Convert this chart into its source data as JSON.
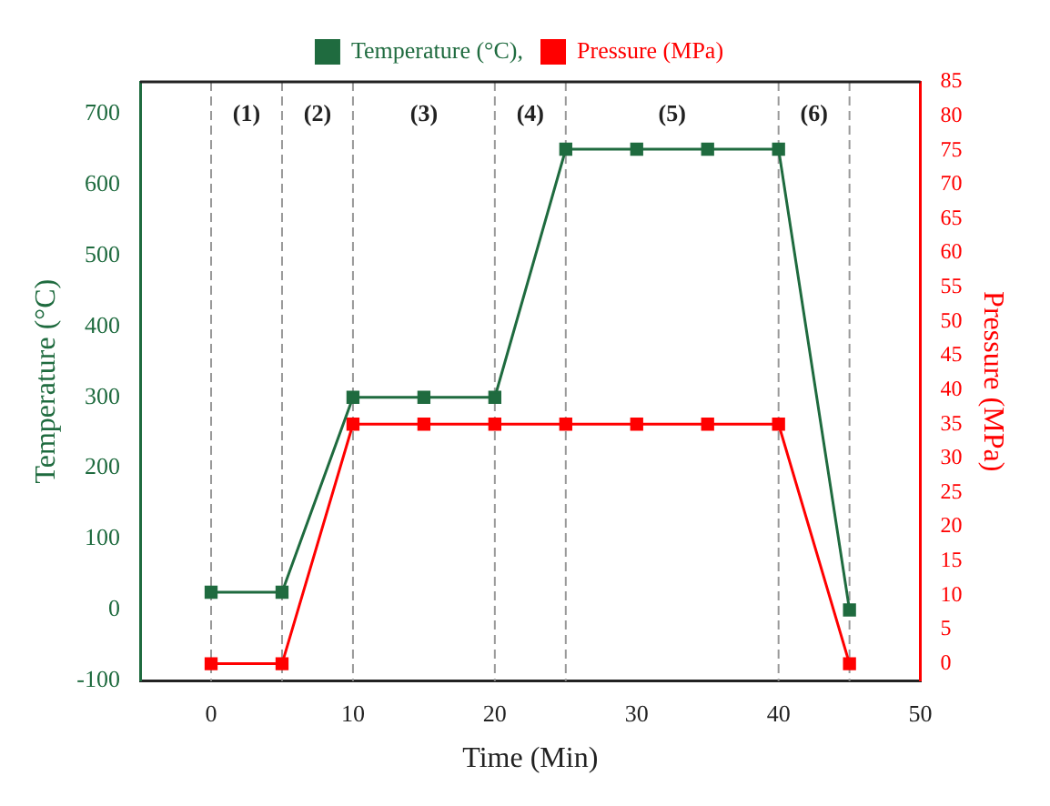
{
  "chart_data": {
    "type": "line",
    "xlabel": "Time (Min)",
    "ylabel": "Temperature (°C)",
    "y2label": "Pressure (MPa)",
    "x": [
      0,
      5,
      10,
      15,
      20,
      25,
      30,
      35,
      40,
      45
    ],
    "series": [
      {
        "name": "Temperature (°C),",
        "color": "#1f6b3f",
        "values": [
          25,
          25,
          300,
          300,
          300,
          650,
          650,
          650,
          650,
          0
        ]
      },
      {
        "name": "Pressure (MPa)",
        "color": "#ff0000",
        "axis": "y2",
        "values": [
          0,
          0,
          35,
          35,
          35,
          35,
          35,
          35,
          35,
          0
        ]
      }
    ],
    "xlim": [
      -5,
      50
    ],
    "xticks": [
      0,
      10,
      20,
      30,
      40,
      50
    ],
    "ylim": [
      -100,
      745
    ],
    "yticks": [
      -100,
      0,
      100,
      200,
      300,
      400,
      500,
      600,
      700
    ],
    "y2lim": [
      -2.5,
      85
    ],
    "y2ticks": [
      0,
      5,
      10,
      15,
      20,
      25,
      30,
      35,
      40,
      45,
      50,
      55,
      60,
      65,
      70,
      75,
      80,
      85
    ],
    "ref_lines": [
      {
        "axis": "x",
        "value": 0,
        "color": "#999999",
        "line_style": "dashed"
      },
      {
        "axis": "x",
        "value": 5,
        "color": "#999999",
        "line_style": "dashed"
      },
      {
        "axis": "x",
        "value": 10,
        "color": "#999999",
        "line_style": "dashed"
      },
      {
        "axis": "x",
        "value": 20,
        "color": "#999999",
        "line_style": "dashed"
      },
      {
        "axis": "x",
        "value": 25,
        "color": "#999999",
        "line_style": "dashed"
      },
      {
        "axis": "x",
        "value": 40,
        "color": "#999999",
        "line_style": "dashed"
      },
      {
        "axis": "x",
        "value": 45,
        "color": "#999999",
        "line_style": "dashed"
      }
    ],
    "annotations": [
      "(1)",
      "(2)",
      "(3)",
      "(4)",
      "(5)",
      "(6)"
    ],
    "legend": "top",
    "grid": false,
    "marker": "square",
    "line_style": "solid"
  }
}
